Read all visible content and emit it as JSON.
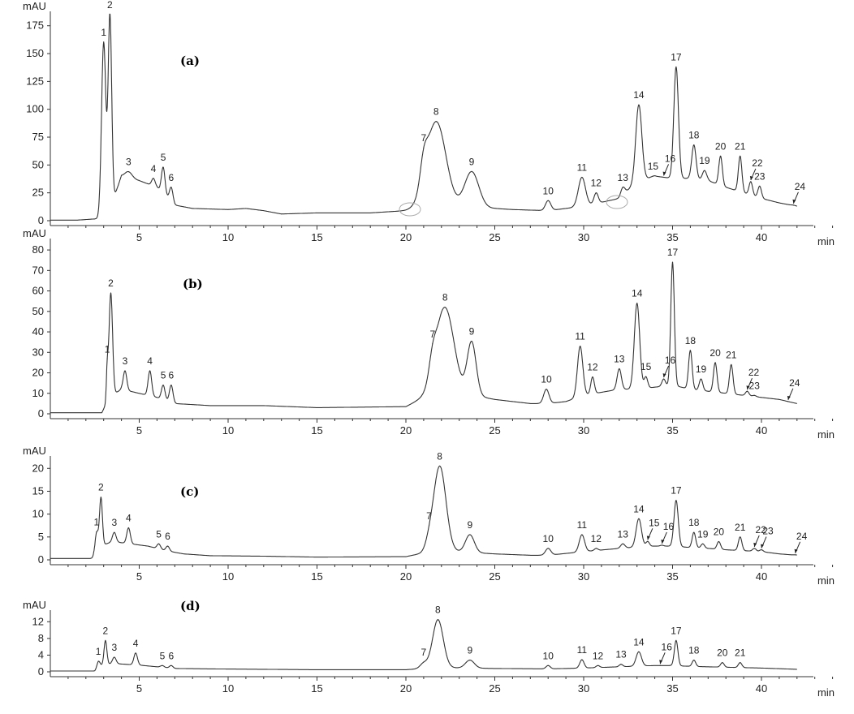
{
  "chart_data": [
    {
      "type": "line",
      "panel_label": "(a)",
      "ylabel": "mAU",
      "xlabel": "min",
      "ylim": [
        0,
        185
      ],
      "xlim": [
        0,
        45
      ],
      "yticks": [
        0,
        25,
        50,
        75,
        100,
        125,
        150,
        175
      ],
      "xticks": [
        5,
        10,
        15,
        20,
        25,
        30,
        35,
        40
      ],
      "baseline": [
        [
          0,
          0.5
        ],
        [
          1.5,
          0.5
        ],
        [
          2.9,
          2
        ],
        [
          3.3,
          8
        ],
        [
          4,
          40
        ],
        [
          5,
          36
        ],
        [
          6,
          30
        ],
        [
          7,
          14
        ],
        [
          8,
          11
        ],
        [
          10,
          10
        ],
        [
          11,
          11
        ],
        [
          12,
          9
        ],
        [
          13,
          6
        ],
        [
          15,
          7
        ],
        [
          18,
          7
        ],
        [
          20,
          9
        ],
        [
          21,
          11
        ],
        [
          22,
          12
        ],
        [
          25,
          11
        ],
        [
          26,
          10
        ],
        [
          28,
          9
        ],
        [
          30,
          13
        ],
        [
          32,
          20
        ],
        [
          33,
          35
        ],
        [
          34,
          40
        ],
        [
          35,
          38
        ],
        [
          36,
          38
        ],
        [
          37,
          36
        ],
        [
          38,
          30
        ],
        [
          39,
          25
        ],
        [
          40,
          20
        ],
        [
          41,
          16
        ],
        [
          42,
          13
        ],
        [
          43,
          10
        ],
        [
          44,
          7
        ],
        [
          45,
          5
        ]
      ],
      "peaks": [
        {
          "label": "1",
          "x": 3.0,
          "y": 160,
          "w": 0.12
        },
        {
          "label": "2",
          "x": 3.35,
          "y": 184,
          "w": 0.1
        },
        {
          "label": "3",
          "x": 4.4,
          "y": 44,
          "w": 0.2
        },
        {
          "label": "4",
          "x": 5.8,
          "y": 38,
          "w": 0.1
        },
        {
          "label": "5",
          "x": 6.35,
          "y": 48,
          "w": 0.1
        },
        {
          "label": "6",
          "x": 6.8,
          "y": 30,
          "w": 0.1
        },
        {
          "label": "7",
          "x": 21.0,
          "y": 31,
          "w": 0.2
        },
        {
          "label": "8",
          "x": 21.7,
          "y": 89,
          "w": 0.55
        },
        {
          "label": "9",
          "x": 23.7,
          "y": 44,
          "w": 0.4
        },
        {
          "label": "10",
          "x": 28.0,
          "y": 18,
          "w": 0.15
        },
        {
          "label": "11",
          "x": 29.9,
          "y": 39,
          "w": 0.2
        },
        {
          "label": "12",
          "x": 30.7,
          "y": 25,
          "w": 0.12
        },
        {
          "label": "13",
          "x": 32.2,
          "y": 30,
          "w": 0.12
        },
        {
          "label": "14",
          "x": 33.1,
          "y": 104,
          "w": 0.17
        },
        {
          "label": "15",
          "x": 33.9,
          "y": 40,
          "w": 0.12
        },
        {
          "label": "16",
          "x": 34.5,
          "y": 37,
          "w": 0.1
        },
        {
          "label": "17",
          "x": 35.2,
          "y": 138,
          "w": 0.13
        },
        {
          "label": "18",
          "x": 36.2,
          "y": 68,
          "w": 0.12
        },
        {
          "label": "19",
          "x": 36.8,
          "y": 45,
          "w": 0.12
        },
        {
          "label": "20",
          "x": 37.7,
          "y": 58,
          "w": 0.1
        },
        {
          "label": "21",
          "x": 38.8,
          "y": 58,
          "w": 0.1
        },
        {
          "label": "22",
          "x": 39.4,
          "y": 35,
          "w": 0.1
        },
        {
          "label": "23",
          "x": 39.9,
          "y": 31,
          "w": 0.1
        },
        {
          "label": "24",
          "x": 41.8,
          "y": 14,
          "w": 0.1
        }
      ],
      "arrow_peaks": [
        "16",
        "22",
        "24"
      ]
    },
    {
      "type": "line",
      "panel_label": "(b)",
      "ylabel": "mAU",
      "xlabel": "min",
      "ylim": [
        0,
        84
      ],
      "xlim": [
        0,
        45
      ],
      "yticks": [
        0,
        10,
        20,
        30,
        40,
        50,
        60,
        70,
        80
      ],
      "xticks": [
        5,
        10,
        15,
        20,
        25,
        30,
        35,
        40
      ],
      "baseline": [
        [
          0,
          0.5
        ],
        [
          2.9,
          0.5
        ],
        [
          3.3,
          8
        ],
        [
          4,
          12
        ],
        [
          5,
          10
        ],
        [
          6,
          8
        ],
        [
          7,
          5
        ],
        [
          9,
          4
        ],
        [
          12,
          4
        ],
        [
          15,
          3
        ],
        [
          20,
          3.5
        ],
        [
          21,
          8
        ],
        [
          22,
          12
        ],
        [
          25,
          7
        ],
        [
          27,
          5
        ],
        [
          28,
          5
        ],
        [
          29,
          6
        ],
        [
          30,
          9
        ],
        [
          32,
          12
        ],
        [
          33,
          12
        ],
        [
          34,
          13
        ],
        [
          35,
          14
        ],
        [
          36,
          12
        ],
        [
          37,
          11
        ],
        [
          38,
          10
        ],
        [
          39,
          9
        ],
        [
          40,
          8
        ],
        [
          41,
          7
        ],
        [
          42,
          5
        ],
        [
          43,
          4
        ],
        [
          44,
          3.5
        ]
      ],
      "peaks": [
        {
          "label": "1",
          "x": 3.2,
          "y": 20,
          "w": 0.05
        },
        {
          "label": "2",
          "x": 3.4,
          "y": 59,
          "w": 0.1
        },
        {
          "label": "3",
          "x": 4.2,
          "y": 21,
          "w": 0.1
        },
        {
          "label": "4",
          "x": 5.6,
          "y": 21,
          "w": 0.1
        },
        {
          "label": "5",
          "x": 6.35,
          "y": 14,
          "w": 0.1
        },
        {
          "label": "6",
          "x": 6.8,
          "y": 14,
          "w": 0.1
        },
        {
          "label": "7",
          "x": 21.5,
          "y": 19,
          "w": 0.2
        },
        {
          "label": "8",
          "x": 22.2,
          "y": 52,
          "w": 0.5
        },
        {
          "label": "9",
          "x": 23.7,
          "y": 35,
          "w": 0.25
        },
        {
          "label": "10",
          "x": 27.9,
          "y": 12,
          "w": 0.15
        },
        {
          "label": "11",
          "x": 29.8,
          "y": 33,
          "w": 0.15
        },
        {
          "label": "12",
          "x": 30.5,
          "y": 18,
          "w": 0.1
        },
        {
          "label": "13",
          "x": 32.0,
          "y": 22,
          "w": 0.12
        },
        {
          "label": "14",
          "x": 33.0,
          "y": 54,
          "w": 0.15
        },
        {
          "label": "15",
          "x": 33.5,
          "y": 18,
          "w": 0.1
        },
        {
          "label": "16",
          "x": 34.5,
          "y": 17,
          "w": 0.1
        },
        {
          "label": "17",
          "x": 35.0,
          "y": 74,
          "w": 0.1
        },
        {
          "label": "18",
          "x": 36.0,
          "y": 31,
          "w": 0.1
        },
        {
          "label": "19",
          "x": 36.6,
          "y": 17,
          "w": 0.1
        },
        {
          "label": "20",
          "x": 37.4,
          "y": 25,
          "w": 0.1
        },
        {
          "label": "21",
          "x": 38.3,
          "y": 24,
          "w": 0.1
        },
        {
          "label": "22",
          "x": 39.2,
          "y": 11,
          "w": 0.1
        },
        {
          "label": "23",
          "x": 39.6,
          "y": 9,
          "w": 0.1
        },
        {
          "label": "24",
          "x": 41.5,
          "y": 6,
          "w": 0.1
        }
      ],
      "arrow_peaks": [
        "16",
        "22",
        "24"
      ]
    },
    {
      "type": "line",
      "panel_label": "(c)",
      "ylabel": "mAU",
      "xlabel": "min",
      "ylim": [
        0,
        22
      ],
      "xlim": [
        0,
        45
      ],
      "yticks": [
        0,
        5,
        10,
        15,
        20
      ],
      "xticks": [
        5,
        10,
        15,
        20,
        25,
        30,
        35,
        40
      ],
      "baseline": [
        [
          0,
          0.3
        ],
        [
          2.5,
          0.3
        ],
        [
          2.8,
          3
        ],
        [
          3.5,
          4
        ],
        [
          4.5,
          3.5
        ],
        [
          5.5,
          3
        ],
        [
          6.5,
          2
        ],
        [
          7.5,
          1.3
        ],
        [
          9,
          0.9
        ],
        [
          12,
          0.8
        ],
        [
          15,
          0.6
        ],
        [
          20,
          0.7
        ],
        [
          21,
          1.5
        ],
        [
          22,
          2
        ],
        [
          25,
          1.3
        ],
        [
          27,
          1
        ],
        [
          28,
          1
        ],
        [
          30,
          1.8
        ],
        [
          32,
          2.5
        ],
        [
          33,
          2.8
        ],
        [
          34,
          3
        ],
        [
          35,
          3
        ],
        [
          36,
          2.7
        ],
        [
          37,
          2.5
        ],
        [
          38,
          2.2
        ],
        [
          39,
          2
        ],
        [
          40,
          1.8
        ],
        [
          41,
          1.3
        ],
        [
          42,
          1
        ],
        [
          43,
          0.8
        ]
      ],
      "peaks": [
        {
          "label": "1",
          "x": 2.6,
          "y": 6,
          "w": 0.1
        },
        {
          "label": "2",
          "x": 2.85,
          "y": 13.5,
          "w": 0.08
        },
        {
          "label": "3",
          "x": 3.6,
          "y": 6,
          "w": 0.1
        },
        {
          "label": "4",
          "x": 4.4,
          "y": 7,
          "w": 0.1
        },
        {
          "label": "5",
          "x": 6.1,
          "y": 3.5,
          "w": 0.1
        },
        {
          "label": "6",
          "x": 6.6,
          "y": 3,
          "w": 0.1
        },
        {
          "label": "7",
          "x": 21.3,
          "y": 3.2,
          "w": 0.2
        },
        {
          "label": "8",
          "x": 21.9,
          "y": 20.5,
          "w": 0.35
        },
        {
          "label": "9",
          "x": 23.6,
          "y": 5.5,
          "w": 0.25
        },
        {
          "label": "10",
          "x": 28.0,
          "y": 2.5,
          "w": 0.15
        },
        {
          "label": "11",
          "x": 29.9,
          "y": 5.5,
          "w": 0.15
        },
        {
          "label": "12",
          "x": 30.7,
          "y": 2.5,
          "w": 0.1
        },
        {
          "label": "13",
          "x": 32.2,
          "y": 3.5,
          "w": 0.12
        },
        {
          "label": "14",
          "x": 33.1,
          "y": 9,
          "w": 0.15
        },
        {
          "label": "15",
          "x": 33.6,
          "y": 4,
          "w": 0.1
        },
        {
          "label": "16",
          "x": 34.4,
          "y": 3.2,
          "w": 0.1
        },
        {
          "label": "17",
          "x": 35.2,
          "y": 13,
          "w": 0.12
        },
        {
          "label": "18",
          "x": 36.2,
          "y": 6,
          "w": 0.1
        },
        {
          "label": "19",
          "x": 36.7,
          "y": 3.5,
          "w": 0.1
        },
        {
          "label": "20",
          "x": 37.6,
          "y": 4,
          "w": 0.1
        },
        {
          "label": "21",
          "x": 38.8,
          "y": 5,
          "w": 0.1
        },
        {
          "label": "22",
          "x": 39.6,
          "y": 2.5,
          "w": 0.1
        },
        {
          "label": "23",
          "x": 40.0,
          "y": 2.2,
          "w": 0.1
        },
        {
          "label": "24",
          "x": 41.9,
          "y": 1.1,
          "w": 0.1
        }
      ],
      "arrow_peaks": [
        "15",
        "16",
        "22",
        "23",
        "24"
      ]
    },
    {
      "type": "line",
      "panel_label": "(d)",
      "ylabel": "mAU",
      "xlabel": "min",
      "ylim": [
        0,
        14
      ],
      "xlim": [
        0,
        45
      ],
      "yticks": [
        0,
        4,
        8,
        12
      ],
      "xticks": [
        5,
        10,
        15,
        20,
        25,
        30,
        35,
        40
      ],
      "baseline": [
        [
          0,
          0.2
        ],
        [
          2.5,
          0.2
        ],
        [
          2.8,
          1.5
        ],
        [
          3.5,
          2
        ],
        [
          5,
          1.6
        ],
        [
          6,
          1.2
        ],
        [
          7,
          0.8
        ],
        [
          9,
          0.7
        ],
        [
          12,
          0.6
        ],
        [
          15,
          0.5
        ],
        [
          20,
          0.5
        ],
        [
          21,
          0.8
        ],
        [
          22,
          1
        ],
        [
          25,
          0.8
        ],
        [
          28,
          0.7
        ],
        [
          30,
          0.9
        ],
        [
          32,
          1.2
        ],
        [
          34,
          1.5
        ],
        [
          35,
          1.5
        ],
        [
          36,
          1.3
        ],
        [
          38,
          1.1
        ],
        [
          40,
          0.9
        ],
        [
          42,
          0.6
        ],
        [
          44,
          0.4
        ],
        [
          45,
          0.3
        ]
      ],
      "peaks": [
        {
          "label": "1",
          "x": 2.7,
          "y": 2.5,
          "w": 0.08
        },
        {
          "label": "2",
          "x": 3.1,
          "y": 7.5,
          "w": 0.08
        },
        {
          "label": "3",
          "x": 3.6,
          "y": 3.5,
          "w": 0.1
        },
        {
          "label": "4",
          "x": 4.8,
          "y": 4.5,
          "w": 0.1
        },
        {
          "label": "5",
          "x": 6.3,
          "y": 1.5,
          "w": 0.1
        },
        {
          "label": "6",
          "x": 6.8,
          "y": 1.5,
          "w": 0.1
        },
        {
          "label": "7",
          "x": 21.0,
          "y": 2,
          "w": 0.2
        },
        {
          "label": "8",
          "x": 21.8,
          "y": 12.5,
          "w": 0.3
        },
        {
          "label": "9",
          "x": 23.6,
          "y": 2.8,
          "w": 0.25
        },
        {
          "label": "10",
          "x": 28.0,
          "y": 1.5,
          "w": 0.12
        },
        {
          "label": "11",
          "x": 29.9,
          "y": 2.9,
          "w": 0.12
        },
        {
          "label": "12",
          "x": 30.8,
          "y": 1.5,
          "w": 0.1
        },
        {
          "label": "13",
          "x": 32.1,
          "y": 1.8,
          "w": 0.1
        },
        {
          "label": "14",
          "x": 33.1,
          "y": 4.8,
          "w": 0.15
        },
        {
          "label": "16",
          "x": 34.3,
          "y": 1.5,
          "w": 0.1
        },
        {
          "label": "17",
          "x": 35.2,
          "y": 7.5,
          "w": 0.1
        },
        {
          "label": "18",
          "x": 36.2,
          "y": 2.8,
          "w": 0.1
        },
        {
          "label": "20",
          "x": 37.8,
          "y": 2.2,
          "w": 0.1
        },
        {
          "label": "21",
          "x": 38.8,
          "y": 2.2,
          "w": 0.1
        }
      ],
      "arrow_peaks": [
        "16"
      ]
    }
  ]
}
